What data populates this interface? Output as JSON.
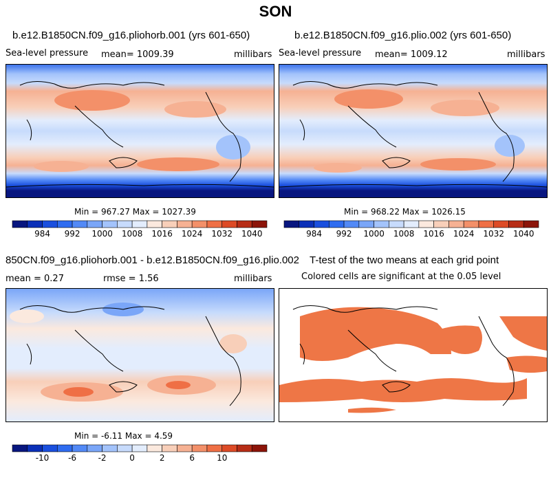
{
  "page_title": "SON",
  "panels": [
    {
      "id": "p1",
      "title": "b.e12.B1850CN.f09_g16.pliohorb.001 (yrs 601-650)",
      "left_label": "Sea-level pressure",
      "center_label": "mean= 1009.39",
      "right_label": "millibars",
      "minmax": "Min = 967.27 Max = 1027.39"
    },
    {
      "id": "p2",
      "title": "b.e12.B1850CN.f09_g16.plio.002 (yrs 601-650)",
      "left_label": "Sea-level pressure",
      "center_label": "mean= 1009.12",
      "right_label": "millibars",
      "minmax": "Min = 968.22 Max = 1026.15"
    },
    {
      "id": "p3",
      "title": "850CN.f09_g16.pliohorb.001 - b.e12.B1850CN.f09_g16.plio.002",
      "left_label": "mean =    0.27",
      "center_label": "rmse =    1.56",
      "right_label": "millibars",
      "minmax": "Min =  -6.11 Max =   4.59"
    },
    {
      "id": "p4",
      "title": "T-test of the two means at each grid point",
      "center_label": "Colored cells are significant at the 0.05 level"
    }
  ],
  "colorbars": {
    "slp": {
      "colors": [
        "#08167f",
        "#0b30b8",
        "#1a4fde",
        "#2f6cf0",
        "#5289f6",
        "#7aa6f8",
        "#a3c3fb",
        "#c7dbfc",
        "#e3edfd",
        "#fbe9de",
        "#f8cfb9",
        "#f6b193",
        "#f39069",
        "#ef6f45",
        "#dd4b26",
        "#b72d16",
        "#8c1409"
      ],
      "tick_labels": [
        "984",
        "992",
        "1000",
        "1008",
        "1016",
        "1024",
        "1032",
        "1040"
      ]
    },
    "diff": {
      "colors": [
        "#08167f",
        "#0b30b8",
        "#1a4fde",
        "#2f6cf0",
        "#5289f6",
        "#7aa6f8",
        "#a3c3fb",
        "#c7dbfc",
        "#e3edfd",
        "#fbe9de",
        "#f8cfb9",
        "#f6b193",
        "#f39069",
        "#ef6f45",
        "#dd4b26",
        "#b72d16",
        "#8c1409"
      ],
      "tick_labels": [
        "-10",
        "-6",
        "-2",
        "0",
        "2",
        "6",
        "10"
      ]
    }
  },
  "chart_data": [
    {
      "type": "heatmap",
      "title": "b.e12.B1850CN.f09_g16.pliohorb.001 (yrs 601-650)",
      "variable": "Sea-level pressure",
      "units": "millibars",
      "mean": 1009.39,
      "min": 967.27,
      "max": 1027.39,
      "contour_levels": [
        976,
        980,
        984,
        988,
        992,
        996,
        1000,
        1004,
        1008,
        1012,
        1016,
        1020,
        1024,
        1028,
        1032,
        1036,
        1040
      ]
    },
    {
      "type": "heatmap",
      "title": "b.e12.B1850CN.f09_g16.plio.002 (yrs 601-650)",
      "variable": "Sea-level pressure",
      "units": "millibars",
      "mean": 1009.12,
      "min": 968.22,
      "max": 1026.15,
      "contour_levels": [
        976,
        980,
        984,
        988,
        992,
        996,
        1000,
        1004,
        1008,
        1012,
        1016,
        1020,
        1024,
        1028,
        1032,
        1036,
        1040
      ]
    },
    {
      "type": "heatmap",
      "title": "850CN.f09_g16.pliohorb.001 - b.e12.B1850CN.f09_g16.plio.002",
      "units": "millibars",
      "mean": 0.27,
      "rmse": 1.56,
      "min": -6.11,
      "max": 4.59,
      "contour_levels": [
        -12,
        -10,
        -8,
        -6,
        -4,
        -2,
        -1,
        0,
        1,
        2,
        4,
        6,
        8,
        10,
        12,
        14
      ]
    },
    {
      "type": "heatmap",
      "title": "T-test of the two means at each grid point",
      "significance_level": 0.05,
      "significant_color": "#ee7646"
    }
  ]
}
